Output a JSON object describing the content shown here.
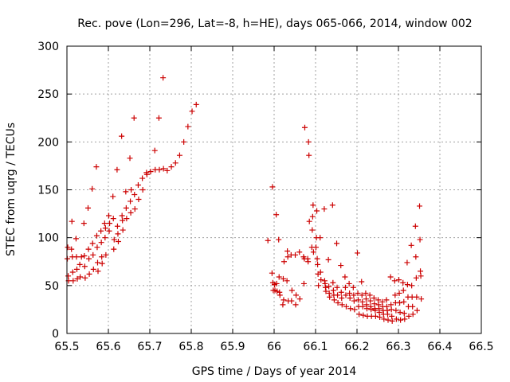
{
  "chart_data": {
    "type": "scatter",
    "title": "Rec. pove (Lon=296, Lat=-8, h=HE), days 065-066, 2014, window 002",
    "xlabel": "GPS time / Days of year 2014",
    "ylabel": "STEC from uqrg / TECUs",
    "xlim": [
      65.5,
      66.5
    ],
    "ylim": [
      0,
      300
    ],
    "xticks": [
      65.5,
      65.6,
      65.7,
      65.8,
      65.9,
      66,
      66.1,
      66.2,
      66.3,
      66.4,
      66.5
    ],
    "xtick_labels": [
      "65.5",
      "65.6",
      "65.7",
      "65.8",
      "65.9",
      "66",
      "66.1",
      "66.2",
      "66.3",
      "66.4",
      "66.5"
    ],
    "yticks": [
      0,
      50,
      100,
      150,
      200,
      250,
      300
    ],
    "ytick_labels": [
      "0",
      "50",
      "100",
      "150",
      "200",
      "250",
      "300"
    ],
    "grid": true,
    "marker": "+",
    "color": "#cc0000",
    "points": [
      [
        65.501,
        78
      ],
      [
        65.502,
        90
      ],
      [
        65.503,
        60
      ],
      [
        65.504,
        55
      ],
      [
        65.511,
        88
      ],
      [
        65.512,
        117
      ],
      [
        65.513,
        80
      ],
      [
        65.514,
        64
      ],
      [
        65.515,
        55
      ],
      [
        65.522,
        99
      ],
      [
        65.523,
        80
      ],
      [
        65.524,
        67
      ],
      [
        65.525,
        57
      ],
      [
        65.531,
        72
      ],
      [
        65.532,
        59
      ],
      [
        65.535,
        80
      ],
      [
        65.541,
        115
      ],
      [
        65.542,
        81
      ],
      [
        65.543,
        70
      ],
      [
        65.544,
        58
      ],
      [
        65.551,
        131
      ],
      [
        65.552,
        88
      ],
      [
        65.553,
        78
      ],
      [
        65.554,
        62
      ],
      [
        65.561,
        151
      ],
      [
        65.562,
        94
      ],
      [
        65.563,
        82
      ],
      [
        65.564,
        67
      ],
      [
        65.571,
        174
      ],
      [
        65.572,
        102
      ],
      [
        65.573,
        90
      ],
      [
        65.574,
        74
      ],
      [
        65.575,
        65
      ],
      [
        65.582,
        107
      ],
      [
        65.583,
        95
      ],
      [
        65.584,
        80
      ],
      [
        65.585,
        73
      ],
      [
        65.591,
        115
      ],
      [
        65.592,
        100
      ],
      [
        65.593,
        110
      ],
      [
        65.594,
        82
      ],
      [
        65.601,
        123
      ],
      [
        65.602,
        107
      ],
      [
        65.603,
        115
      ],
      [
        65.611,
        143
      ],
      [
        65.612,
        120
      ],
      [
        65.613,
        88
      ],
      [
        65.614,
        98
      ],
      [
        65.621,
        171
      ],
      [
        65.622,
        112
      ],
      [
        65.623,
        104
      ],
      [
        65.624,
        96
      ],
      [
        65.632,
        206
      ],
      [
        65.633,
        123
      ],
      [
        65.634,
        118
      ],
      [
        65.635,
        108
      ],
      [
        65.642,
        148
      ],
      [
        65.643,
        131
      ],
      [
        65.644,
        120
      ],
      [
        65.652,
        183
      ],
      [
        65.653,
        138
      ],
      [
        65.654,
        126
      ],
      [
        65.655,
        150
      ],
      [
        65.662,
        225
      ],
      [
        65.663,
        145
      ],
      [
        65.664,
        130
      ],
      [
        65.672,
        155
      ],
      [
        65.673,
        140
      ],
      [
        65.682,
        162
      ],
      [
        65.683,
        150
      ],
      [
        65.692,
        168
      ],
      [
        65.693,
        166
      ],
      [
        65.702,
        169
      ],
      [
        65.712,
        191
      ],
      [
        65.713,
        171
      ],
      [
        65.722,
        225
      ],
      [
        65.723,
        171
      ],
      [
        65.732,
        267
      ],
      [
        65.733,
        172
      ],
      [
        65.742,
        170
      ],
      [
        65.752,
        174
      ],
      [
        65.762,
        178
      ],
      [
        65.772,
        186
      ],
      [
        65.782,
        200
      ],
      [
        65.792,
        216
      ],
      [
        65.802,
        232
      ],
      [
        65.812,
        239
      ],
      [
        65.985,
        97
      ],
      [
        65.995,
        63
      ],
      [
        65.996,
        153
      ],
      [
        65.997,
        53
      ],
      [
        65.998,
        45
      ],
      [
        66.001,
        51
      ],
      [
        66.002,
        45
      ],
      [
        66.005,
        124
      ],
      [
        66.006,
        52
      ],
      [
        66.007,
        44
      ],
      [
        66.011,
        98
      ],
      [
        66.012,
        59
      ],
      [
        66.013,
        43
      ],
      [
        66.014,
        40
      ],
      [
        66.021,
        30
      ],
      [
        66.022,
        57
      ],
      [
        66.023,
        35
      ],
      [
        66.024,
        75
      ],
      [
        66.031,
        55
      ],
      [
        66.032,
        86
      ],
      [
        66.033,
        80
      ],
      [
        66.034,
        34
      ],
      [
        66.041,
        82
      ],
      [
        66.042,
        34
      ],
      [
        66.043,
        45
      ],
      [
        66.051,
        82
      ],
      [
        66.052,
        30
      ],
      [
        66.053,
        40
      ],
      [
        66.061,
        85
      ],
      [
        66.062,
        36
      ],
      [
        66.071,
        80
      ],
      [
        66.072,
        52
      ],
      [
        66.073,
        78
      ],
      [
        66.074,
        215
      ],
      [
        66.081,
        78
      ],
      [
        66.082,
        75
      ],
      [
        66.083,
        200
      ],
      [
        66.084,
        186
      ],
      [
        66.085,
        117
      ],
      [
        66.091,
        90
      ],
      [
        66.092,
        108
      ],
      [
        66.093,
        122
      ],
      [
        66.094,
        134
      ],
      [
        66.095,
        85
      ],
      [
        66.101,
        90
      ],
      [
        66.102,
        100
      ],
      [
        66.103,
        128
      ],
      [
        66.104,
        78
      ],
      [
        66.105,
        72
      ],
      [
        66.106,
        62
      ],
      [
        66.107,
        50
      ],
      [
        66.111,
        100
      ],
      [
        66.112,
        64
      ],
      [
        66.113,
        56
      ],
      [
        66.121,
        130
      ],
      [
        66.122,
        55
      ],
      [
        66.123,
        52
      ],
      [
        66.124,
        48
      ],
      [
        66.125,
        44
      ],
      [
        66.131,
        77
      ],
      [
        66.132,
        49
      ],
      [
        66.133,
        42
      ],
      [
        66.134,
        38
      ],
      [
        66.141,
        134
      ],
      [
        66.142,
        53
      ],
      [
        66.143,
        45
      ],
      [
        66.144,
        40
      ],
      [
        66.145,
        35
      ],
      [
        66.151,
        94
      ],
      [
        66.152,
        48
      ],
      [
        66.153,
        40
      ],
      [
        66.154,
        32
      ],
      [
        66.161,
        71
      ],
      [
        66.162,
        43
      ],
      [
        66.163,
        37
      ],
      [
        66.164,
        30
      ],
      [
        66.171,
        59
      ],
      [
        66.172,
        48
      ],
      [
        66.173,
        40
      ],
      [
        66.174,
        28
      ],
      [
        66.181,
        52
      ],
      [
        66.182,
        42
      ],
      [
        66.183,
        37
      ],
      [
        66.184,
        26
      ],
      [
        66.191,
        48
      ],
      [
        66.192,
        40
      ],
      [
        66.193,
        34
      ],
      [
        66.194,
        25
      ],
      [
        66.201,
        84
      ],
      [
        66.202,
        42
      ],
      [
        66.203,
        35
      ],
      [
        66.204,
        28
      ],
      [
        66.205,
        20
      ],
      [
        66.211,
        54
      ],
      [
        66.212,
        40
      ],
      [
        66.213,
        33
      ],
      [
        66.214,
        28
      ],
      [
        66.215,
        19
      ],
      [
        66.221,
        42
      ],
      [
        66.222,
        36
      ],
      [
        66.223,
        30
      ],
      [
        66.224,
        26
      ],
      [
        66.225,
        18
      ],
      [
        66.231,
        40
      ],
      [
        66.232,
        34
      ],
      [
        66.233,
        28
      ],
      [
        66.234,
        25
      ],
      [
        66.235,
        18
      ],
      [
        66.241,
        37
      ],
      [
        66.242,
        31
      ],
      [
        66.243,
        26
      ],
      [
        66.244,
        24
      ],
      [
        66.245,
        18
      ],
      [
        66.251,
        35
      ],
      [
        66.252,
        30
      ],
      [
        66.253,
        26
      ],
      [
        66.254,
        22
      ],
      [
        66.255,
        17
      ],
      [
        66.261,
        33
      ],
      [
        66.262,
        28
      ],
      [
        66.263,
        24
      ],
      [
        66.264,
        20
      ],
      [
        66.265,
        15
      ],
      [
        66.271,
        35
      ],
      [
        66.272,
        28
      ],
      [
        66.273,
        24
      ],
      [
        66.274,
        20
      ],
      [
        66.275,
        14
      ],
      [
        66.281,
        59
      ],
      [
        66.282,
        30
      ],
      [
        66.283,
        25
      ],
      [
        66.284,
        18
      ],
      [
        66.285,
        13
      ],
      [
        66.291,
        55
      ],
      [
        66.292,
        40
      ],
      [
        66.293,
        32
      ],
      [
        66.294,
        24
      ],
      [
        66.295,
        15
      ],
      [
        66.301,
        56
      ],
      [
        66.302,
        42
      ],
      [
        66.303,
        32
      ],
      [
        66.304,
        22
      ],
      [
        66.305,
        14
      ],
      [
        66.311,
        53
      ],
      [
        66.312,
        45
      ],
      [
        66.313,
        33
      ],
      [
        66.314,
        21
      ],
      [
        66.315,
        15
      ],
      [
        66.321,
        74
      ],
      [
        66.322,
        51
      ],
      [
        66.323,
        38
      ],
      [
        66.324,
        28
      ],
      [
        66.325,
        18
      ],
      [
        66.331,
        92
      ],
      [
        66.332,
        50
      ],
      [
        66.333,
        38
      ],
      [
        66.334,
        28
      ],
      [
        66.335,
        20
      ],
      [
        66.341,
        112
      ],
      [
        66.342,
        80
      ],
      [
        66.343,
        58
      ],
      [
        66.344,
        38
      ],
      [
        66.345,
        24
      ],
      [
        66.351,
        133
      ],
      [
        66.352,
        98
      ],
      [
        66.353,
        65
      ],
      [
        66.354,
        60
      ],
      [
        66.355,
        36
      ]
    ]
  }
}
